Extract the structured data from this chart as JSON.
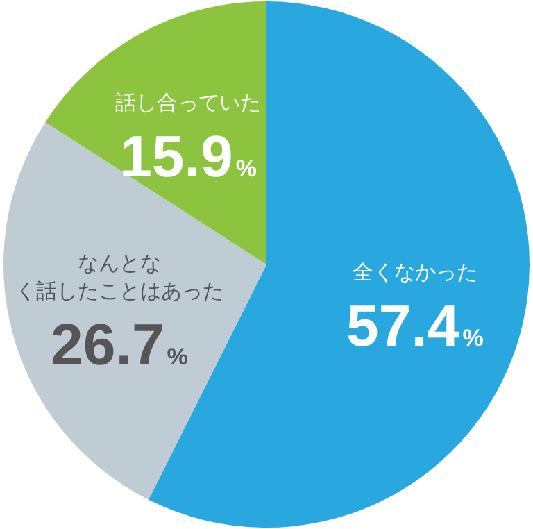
{
  "chart_data": {
    "type": "pie",
    "categories": [
      "全くなかった",
      "なんとなく話したことはあった",
      "話し合っていた"
    ],
    "values": [
      57.4,
      26.7,
      15.9
    ],
    "colors": [
      "#29a8e0",
      "#c0ccd4",
      "#8dc43f"
    ],
    "value_labels": [
      "57.4%",
      "26.7%",
      "15.9%"
    ]
  }
}
